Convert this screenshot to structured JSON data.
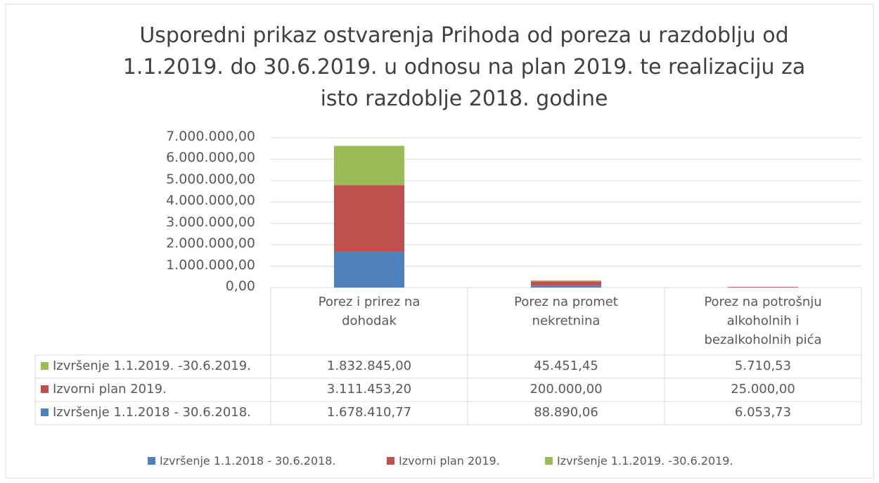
{
  "chart_data": {
    "type": "stacked_bar",
    "title": "Usporedni prikaz ostvarenja Prihoda od poreza u razdoblju od 1.1.2019. do 30.6.2019. u odnosu na plan 2019. te realizaciju za isto razdoblje 2018. godine",
    "categories": [
      "Porez i prirez na dohodak",
      "Porez na promet nekretnina",
      "Porez na potrošnju alkoholnih i bezalkoholnih pića"
    ],
    "series": [
      {
        "name": "Izvršenje 1.1.2018 - 30.6.2018.",
        "color": "#4f81bd",
        "values": [
          1678410.77,
          88890.06,
          6053.73
        ],
        "value_labels": [
          "1.678.410,77",
          "88.890,06",
          "6.053,73"
        ]
      },
      {
        "name": "Izvorni plan 2019.",
        "color": "#c0504d",
        "values": [
          3111453.2,
          200000.0,
          25000.0
        ],
        "value_labels": [
          "3.111.453,20",
          "200.000,00",
          "25.000,00"
        ]
      },
      {
        "name": "Izvršenje 1.1.2019. -30.6.2019.",
        "color": "#9bbb59",
        "values": [
          1832845.0,
          45451.45,
          5710.53
        ],
        "value_labels": [
          "1.832.845,00",
          "45.451,45",
          "5.710,53"
        ]
      }
    ],
    "ylim": [
      0,
      7000000
    ],
    "yticks": [
      {
        "value": 0,
        "label": "0,00"
      },
      {
        "value": 1000000,
        "label": "1.000.000,00"
      },
      {
        "value": 2000000,
        "label": "2.000.000,00"
      },
      {
        "value": 3000000,
        "label": "3.000.000,00"
      },
      {
        "value": 4000000,
        "label": "4.000.000,00"
      },
      {
        "value": 5000000,
        "label": "5.000.000,00"
      },
      {
        "value": 6000000,
        "label": "6.000.000,00"
      },
      {
        "value": 7000000,
        "label": "7.000.000,00"
      }
    ],
    "grid": true
  }
}
